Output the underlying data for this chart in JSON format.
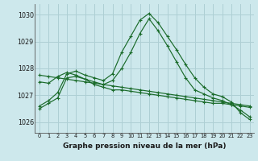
{
  "title": "Graphe pression niveau de la mer (hPa)",
  "background_color": "#cde8ec",
  "grid_color": "#aecfd4",
  "line_color": "#1a6b2a",
  "xlim": [
    -0.5,
    23.5
  ],
  "ylim": [
    1025.6,
    1030.4
  ],
  "yticks": [
    1026,
    1027,
    1028,
    1029,
    1030
  ],
  "xticks": [
    0,
    1,
    2,
    3,
    4,
    5,
    6,
    7,
    8,
    9,
    10,
    11,
    12,
    13,
    14,
    15,
    16,
    17,
    18,
    19,
    20,
    21,
    22,
    23
  ],
  "series": [
    [
      1026.6,
      1026.8,
      1027.1,
      1027.8,
      1027.9,
      1027.75,
      1027.65,
      1027.55,
      1027.8,
      1028.6,
      1029.2,
      1029.8,
      1030.05,
      1029.7,
      1029.2,
      1028.7,
      1028.15,
      1027.65,
      1027.3,
      1027.05,
      1026.95,
      1026.75,
      1026.35,
      1026.1
    ],
    [
      1026.5,
      1026.7,
      1026.9,
      1027.65,
      1027.7,
      1027.6,
      1027.5,
      1027.4,
      1027.55,
      1028.0,
      1028.6,
      1029.3,
      1029.85,
      1029.4,
      1028.85,
      1028.25,
      1027.65,
      1027.2,
      1027.05,
      1026.9,
      1026.8,
      1026.65,
      1026.45,
      1026.2
    ],
    [
      1027.5,
      1027.45,
      1027.7,
      1027.85,
      1027.75,
      1027.6,
      1027.4,
      1027.3,
      1027.2,
      1027.2,
      1027.15,
      1027.1,
      1027.05,
      1027.0,
      1026.95,
      1026.9,
      1026.85,
      1026.8,
      1026.75,
      1026.7,
      1026.7,
      1026.65,
      1026.6,
      1026.55
    ],
    [
      1027.75,
      1027.7,
      1027.65,
      1027.6,
      1027.55,
      1027.5,
      1027.45,
      1027.4,
      1027.35,
      1027.3,
      1027.25,
      1027.2,
      1027.15,
      1027.1,
      1027.05,
      1027.0,
      1026.95,
      1026.9,
      1026.85,
      1026.8,
      1026.75,
      1026.7,
      1026.65,
      1026.6
    ]
  ],
  "ylabel_color": "#1a1a1a",
  "tick_color": "#1a1a1a",
  "spine_color": "#555555",
  "title_fontsize": 6.5,
  "xtick_fontsize": 4.8,
  "ytick_fontsize": 5.8,
  "linewidth": 0.85,
  "markersize": 2.8
}
